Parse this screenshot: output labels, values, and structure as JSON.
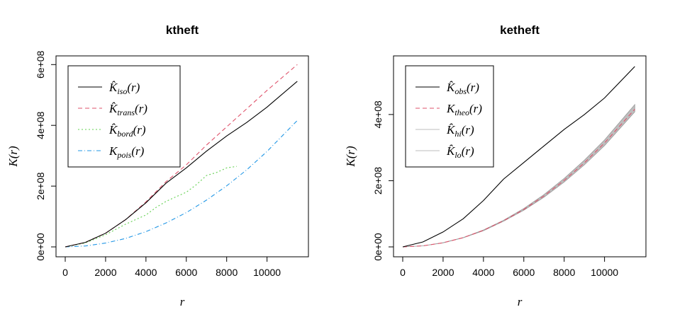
{
  "chart_data": [
    {
      "type": "line",
      "title": "ktheft",
      "xlabel": "r",
      "ylabel": "K(r)",
      "xlim": [
        0,
        11700
      ],
      "ylim": [
        0,
        610000000.0
      ],
      "x_ticks": [
        0,
        2000,
        4000,
        6000,
        8000,
        10000
      ],
      "x_tick_labels": [
        "0",
        "2000",
        "4000",
        "6000",
        "8000",
        "10000"
      ],
      "y_ticks": [
        0,
        200000000.0,
        400000000.0,
        600000000.0
      ],
      "y_tick_labels": [
        "0e+00",
        "2e+08",
        "4e+08",
        "6e+08"
      ],
      "legend_position": "top-left",
      "series": [
        {
          "name": "iso",
          "base": "K̂",
          "color": "#000000",
          "dash": "solid",
          "x": [
            0,
            1000,
            2000,
            3000,
            4000,
            5000,
            6000,
            7000,
            8000,
            9000,
            10000,
            11500
          ],
          "y": [
            0,
            15000000.0,
            45000000.0,
            90000000.0,
            145000000.0,
            210000000.0,
            260000000.0,
            315000000.0,
            365000000.0,
            410000000.0,
            460000000.0,
            545000000.0
          ]
        },
        {
          "name": "trans",
          "base": "K̂",
          "color": "#DF536B",
          "dash": "6,4",
          "x": [
            0,
            1000,
            2000,
            3000,
            4000,
            5000,
            6000,
            7000,
            8000,
            9000,
            10000,
            11500
          ],
          "y": [
            0,
            15000000.0,
            45000000.0,
            90000000.0,
            148000000.0,
            215000000.0,
            270000000.0,
            335000000.0,
            395000000.0,
            455000000.0,
            515000000.0,
            600000000.0
          ]
        },
        {
          "name": "bord",
          "base": "K̂",
          "color": "#61D04F",
          "dash": "2,3",
          "x": [
            0,
            1000,
            2000,
            3000,
            3500,
            4000,
            4500,
            5000,
            5500,
            6000,
            6500,
            7000,
            7500,
            8000,
            8500
          ],
          "y": [
            0,
            13000000.0,
            40000000.0,
            75000000.0,
            90000000.0,
            105000000.0,
            130000000.0,
            150000000.0,
            165000000.0,
            180000000.0,
            205000000.0,
            235000000.0,
            245000000.0,
            260000000.0,
            265000000.0
          ]
        },
        {
          "name": "pois",
          "base": "K",
          "color": "#2297E6",
          "dash": "6,3,1,3",
          "x": [
            0,
            1000,
            2000,
            3000,
            4000,
            5000,
            6000,
            7000,
            8000,
            9000,
            10000,
            11500
          ],
          "y": [
            0,
            3100000.0,
            12500000.0,
            28000000.0,
            50000000.0,
            79000000.0,
            113000000.0,
            154000000.0,
            201000000.0,
            254000000.0,
            314000000.0,
            416000000.0
          ]
        }
      ]
    },
    {
      "type": "line",
      "title": "ketheft",
      "xlabel": "r",
      "ylabel": "K(r)",
      "xlim": [
        0,
        11700
      ],
      "ylim": [
        0,
        560000000.0
      ],
      "x_ticks": [
        0,
        2000,
        4000,
        6000,
        8000,
        10000
      ],
      "x_tick_labels": [
        "0",
        "2000",
        "4000",
        "6000",
        "8000",
        "10000"
      ],
      "y_ticks": [
        0,
        200000000.0,
        400000000.0
      ],
      "y_tick_labels": [
        "0e+00",
        "2e+08",
        "4e+08"
      ],
      "legend_position": "top-left",
      "envelope": {
        "color": "#BEBEBE",
        "x": [
          0,
          1000,
          2000,
          3000,
          4000,
          5000,
          6000,
          7000,
          8000,
          9000,
          10000,
          11500
        ],
        "hi": [
          0,
          3200000.0,
          12800000.0,
          28500000.0,
          51000000.0,
          80500000.0,
          116000000.0,
          158000000.0,
          207000000.0,
          262000000.0,
          323000000.0,
          430000000.0
        ],
        "lo": [
          0,
          3000000.0,
          12200000.0,
          27500000.0,
          49000000.0,
          77500000.0,
          111000000.0,
          150000000.0,
          196000000.0,
          248000000.0,
          306000000.0,
          408000000.0
        ]
      },
      "series": [
        {
          "name": "obs",
          "base": "K̂",
          "color": "#000000",
          "dash": "solid",
          "x": [
            0,
            1000,
            2000,
            3000,
            4000,
            5000,
            6000,
            7000,
            8000,
            9000,
            10000,
            11500
          ],
          "y": [
            0,
            15000000.0,
            45000000.0,
            85000000.0,
            140000000.0,
            205000000.0,
            255000000.0,
            305000000.0,
            355000000.0,
            400000000.0,
            450000000.0,
            545000000.0
          ]
        },
        {
          "name": "theo",
          "base": "K",
          "color": "#DF536B",
          "dash": "6,4",
          "x": [
            0,
            1000,
            2000,
            3000,
            4000,
            5000,
            6000,
            7000,
            8000,
            9000,
            10000,
            11500
          ],
          "y": [
            0,
            3100000.0,
            12500000.0,
            28000000.0,
            50000000.0,
            79000000.0,
            113000000.0,
            154000000.0,
            201000000.0,
            254000000.0,
            314000000.0,
            416000000.0
          ]
        },
        {
          "name": "hi",
          "base": "K̂",
          "color": "#BEBEBE",
          "dash": "solid",
          "envelope": true
        },
        {
          "name": "lo",
          "base": "K̂",
          "color": "#BEBEBE",
          "dash": "solid",
          "envelope": true
        }
      ]
    }
  ]
}
